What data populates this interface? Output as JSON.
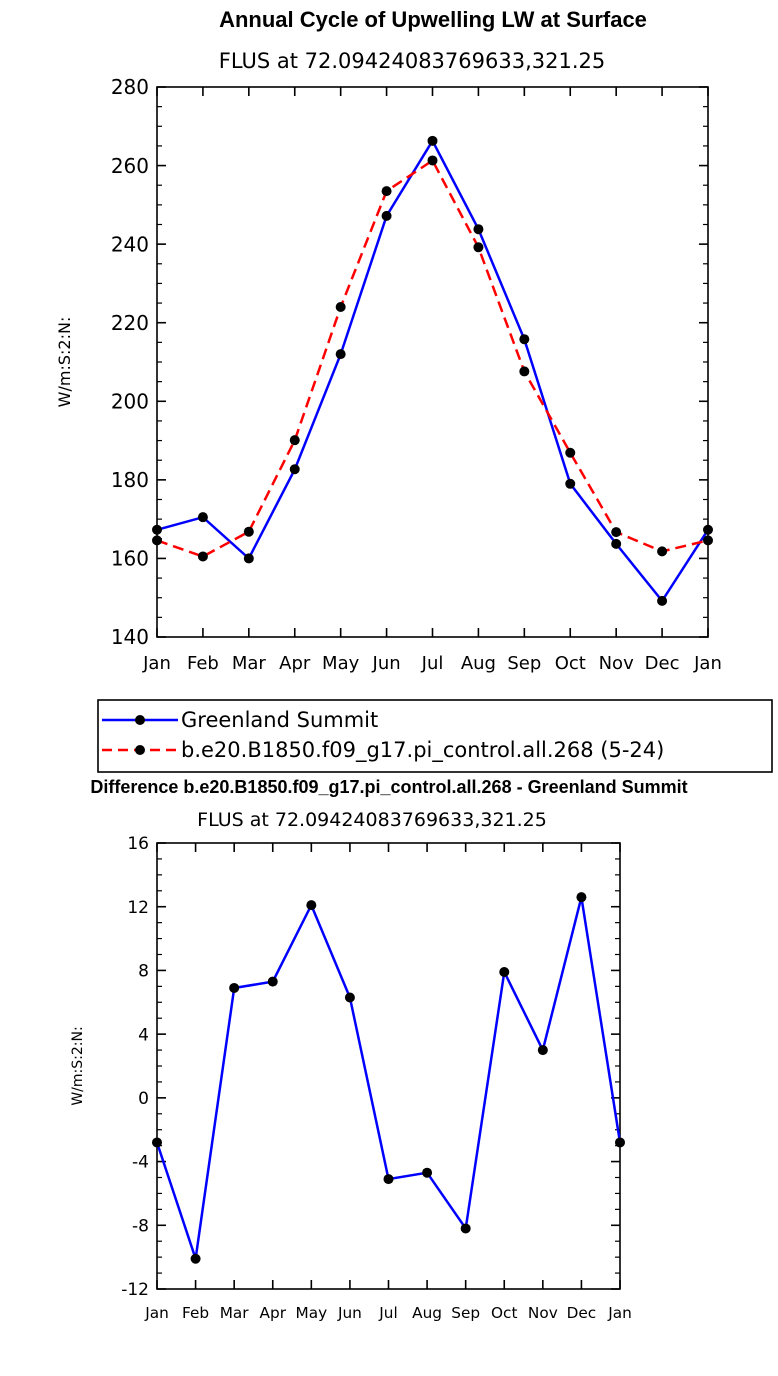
{
  "colors": {
    "obs": "#0000ff",
    "model": "#ff0000",
    "marker": "#000000",
    "axis": "#000000"
  },
  "chart_data": [
    {
      "type": "line",
      "title": "Annual Cycle of Upwelling LW at Surface",
      "subtitle": "FLUS at 72.09424083769633,321.25",
      "xlabel": "",
      "ylabel": "W/m:S:2:N:",
      "ylim": [
        140,
        280
      ],
      "yticks": [
        140,
        160,
        180,
        200,
        220,
        240,
        260,
        280
      ],
      "categories": [
        "Jan",
        "Feb",
        "Mar",
        "Apr",
        "May",
        "Jun",
        "Jul",
        "Aug",
        "Sep",
        "Oct",
        "Nov",
        "Dec",
        "Jan"
      ],
      "series": [
        {
          "name": "Greenland Summit",
          "style": "solid",
          "color": "#0000ff",
          "values": [
            167.3,
            170.5,
            160.0,
            182.7,
            212.0,
            247.2,
            266.3,
            243.8,
            215.8,
            179.0,
            163.7,
            149.2,
            167.3
          ]
        },
        {
          "name": "b.e20.B1850.f09_g17.pi_control.all.268 (5-24)",
          "style": "dashed",
          "color": "#ff0000",
          "values": [
            164.6,
            160.5,
            166.8,
            190.1,
            224.0,
            253.5,
            261.3,
            239.2,
            207.6,
            186.9,
            166.7,
            161.8,
            164.6
          ]
        }
      ],
      "legend": "bottom"
    },
    {
      "type": "line",
      "title": "Difference b.e20.B1850.f09_g17.pi_control.all.268 - Greenland Summit",
      "subtitle": "FLUS at 72.09424083769633,321.25",
      "xlabel": "",
      "ylabel": "W/m:S:2:N:",
      "ylim": [
        -12,
        16
      ],
      "yticks": [
        -12,
        -8,
        -4,
        0,
        4,
        8,
        12,
        16
      ],
      "categories": [
        "Jan",
        "Feb",
        "Mar",
        "Apr",
        "May",
        "Jun",
        "Jul",
        "Aug",
        "Sep",
        "Oct",
        "Nov",
        "Dec",
        "Jan"
      ],
      "series": [
        {
          "style": "solid",
          "color": "#0000ff",
          "values": [
            -2.8,
            -10.1,
            6.9,
            7.3,
            12.1,
            6.3,
            -5.1,
            -4.7,
            -8.2,
            7.9,
            3.0,
            12.6,
            -2.8
          ]
        }
      ]
    }
  ]
}
